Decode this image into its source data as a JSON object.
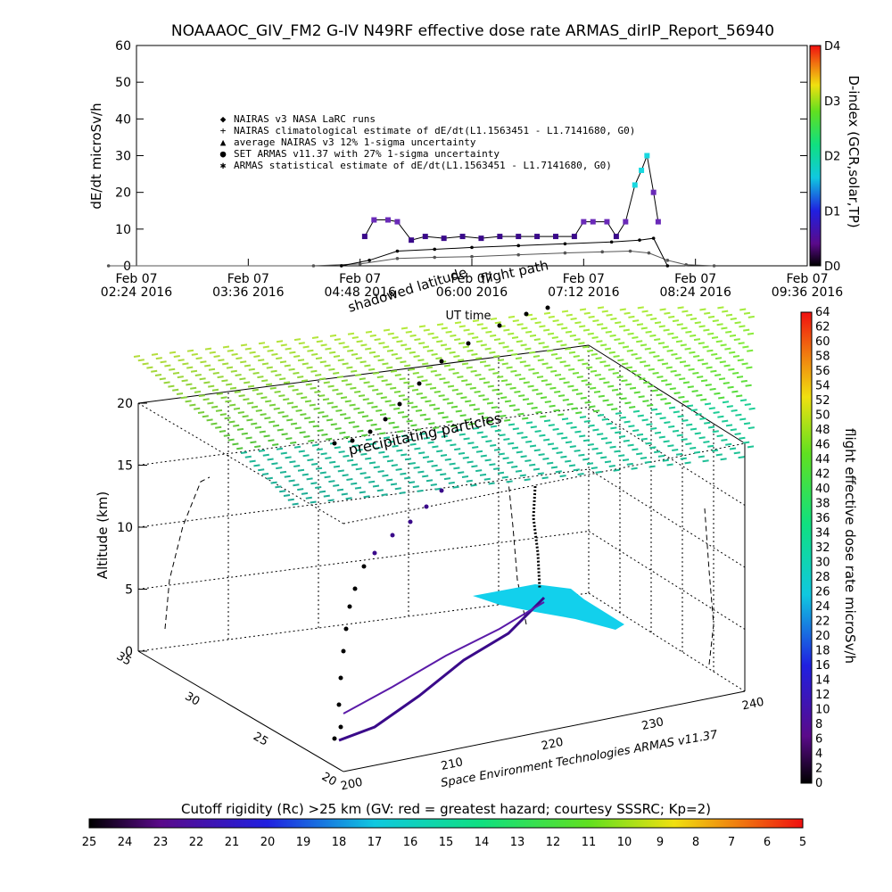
{
  "chart_data": [
    {
      "type": "scatter",
      "title": "NOAAAOC_GIV_FM2 G-IV    N49RF   effective dose rate ARMAS_dirIP_Report_56940",
      "xlabel": "UT time",
      "ylabel": "dE/dt microSv/h",
      "ylim": [
        0,
        60
      ],
      "yticks": [
        "0",
        "10",
        "20",
        "30",
        "40",
        "50",
        "60"
      ],
      "xticks": [
        {
          "date": "Feb 07",
          "time": "02:24 2016"
        },
        {
          "date": "Feb 07",
          "time": "03:36 2016"
        },
        {
          "date": "Feb 07",
          "time": "04:48 2016"
        },
        {
          "date": "Feb 07",
          "time": "06:00 2016"
        },
        {
          "date": "Feb 07",
          "time": "07:12 2016"
        },
        {
          "date": "Feb 07",
          "time": "08:24 2016"
        },
        {
          "date": "Feb 07",
          "time": "09:36 2016"
        }
      ],
      "legend": [
        {
          "symbol": "◆",
          "text": "NAIRAS v3 NASA LaRC runs"
        },
        {
          "symbol": "+",
          "text": "NAIRAS climatological estimate of dE/dt(L1.1563451 - L1.7141680, G0)"
        },
        {
          "symbol": "▲",
          "text": "average NAIRAS v3 12% 1-sigma uncertainty"
        },
        {
          "symbol": "●",
          "text": "SET ARMAS v11.37 with 27% 1-sigma uncertainty"
        },
        {
          "symbol": "✱",
          "text": "ARMAS statistical estimate of dE/dt(L1.1563451 - L1.7141680, G0)"
        }
      ],
      "legend_position": "top-left",
      "series": [
        {
          "name": "NAIRAS v3 NASA LaRC runs",
          "x": [
            2.1,
            4.3,
            4.8,
            5.2,
            5.6,
            6.0,
            6.5,
            7.0,
            7.4,
            7.7,
            7.9,
            8.1,
            8.3,
            8.6
          ],
          "y": [
            0,
            0,
            0.5,
            2,
            2.3,
            2.5,
            3,
            3.5,
            3.8,
            4,
            3.5,
            1.5,
            0.3,
            0
          ]
        },
        {
          "name": "ARMAS statistical estimate",
          "x": [
            4.6,
            4.9,
            5.2,
            5.6,
            6.0,
            6.5,
            7.0,
            7.5,
            7.8,
            7.95,
            8.1
          ],
          "y": [
            0,
            1.5,
            4,
            4.5,
            5,
            5.5,
            6,
            6.5,
            7,
            7.5,
            0
          ]
        },
        {
          "name": "SET ARMAS v11.37",
          "x": [
            4.85,
            4.95,
            5.1,
            5.2,
            5.35,
            5.5,
            5.7,
            5.9,
            6.1,
            6.3,
            6.5,
            6.7,
            6.9,
            7.1,
            7.2,
            7.3,
            7.45,
            7.55,
            7.65,
            7.75,
            7.82,
            7.88,
            7.95,
            8.0
          ],
          "y": [
            8,
            12.5,
            12.5,
            12,
            7,
            8,
            7.5,
            8,
            7.5,
            8,
            8,
            8,
            8,
            8,
            12,
            12,
            12,
            8,
            12,
            22,
            26,
            30,
            20,
            12
          ]
        }
      ],
      "colorbar": {
        "label": "D-index (GCR,solar,TP)",
        "ticks": [
          "D0",
          "D1",
          "D2",
          "D3",
          "D4"
        ]
      }
    },
    {
      "type": "scatter",
      "title": "",
      "zlabel": "Altitude (km)",
      "zticks": [
        "0",
        "5",
        "10",
        "15",
        "20"
      ],
      "lon_ticks": [
        "200",
        "210",
        "220",
        "230",
        "240"
      ],
      "lat_ticks": [
        "20",
        "25",
        "30",
        "35"
      ],
      "annotations": [
        "flight path",
        "shadowed latitude",
        "precipitating particles"
      ],
      "footer": "Space Environment Technologies ARMAS v11.37",
      "colorbar": {
        "label": "flight effective dose rate microSv/h",
        "ticks": [
          "0",
          "2",
          "4",
          "6",
          "8",
          "10",
          "12",
          "14",
          "16",
          "18",
          "20",
          "22",
          "24",
          "26",
          "28",
          "30",
          "32",
          "34",
          "36",
          "38",
          "40",
          "42",
          "44",
          "46",
          "48",
          "50",
          "52",
          "54",
          "56",
          "58",
          "60",
          "62",
          "64"
        ]
      },
      "bottom_colorbar": {
        "title": "Cutoff rigidity (Rc) >25 km (GV: red = greatest hazard; courtesy SSSRC; Kp=2)",
        "ticks": [
          "25",
          "24",
          "23",
          "22",
          "21",
          "20",
          "19",
          "18",
          "17",
          "16",
          "15",
          "14",
          "13",
          "12",
          "11",
          "10",
          "9",
          "8",
          "7",
          "6",
          "5"
        ]
      }
    }
  ]
}
